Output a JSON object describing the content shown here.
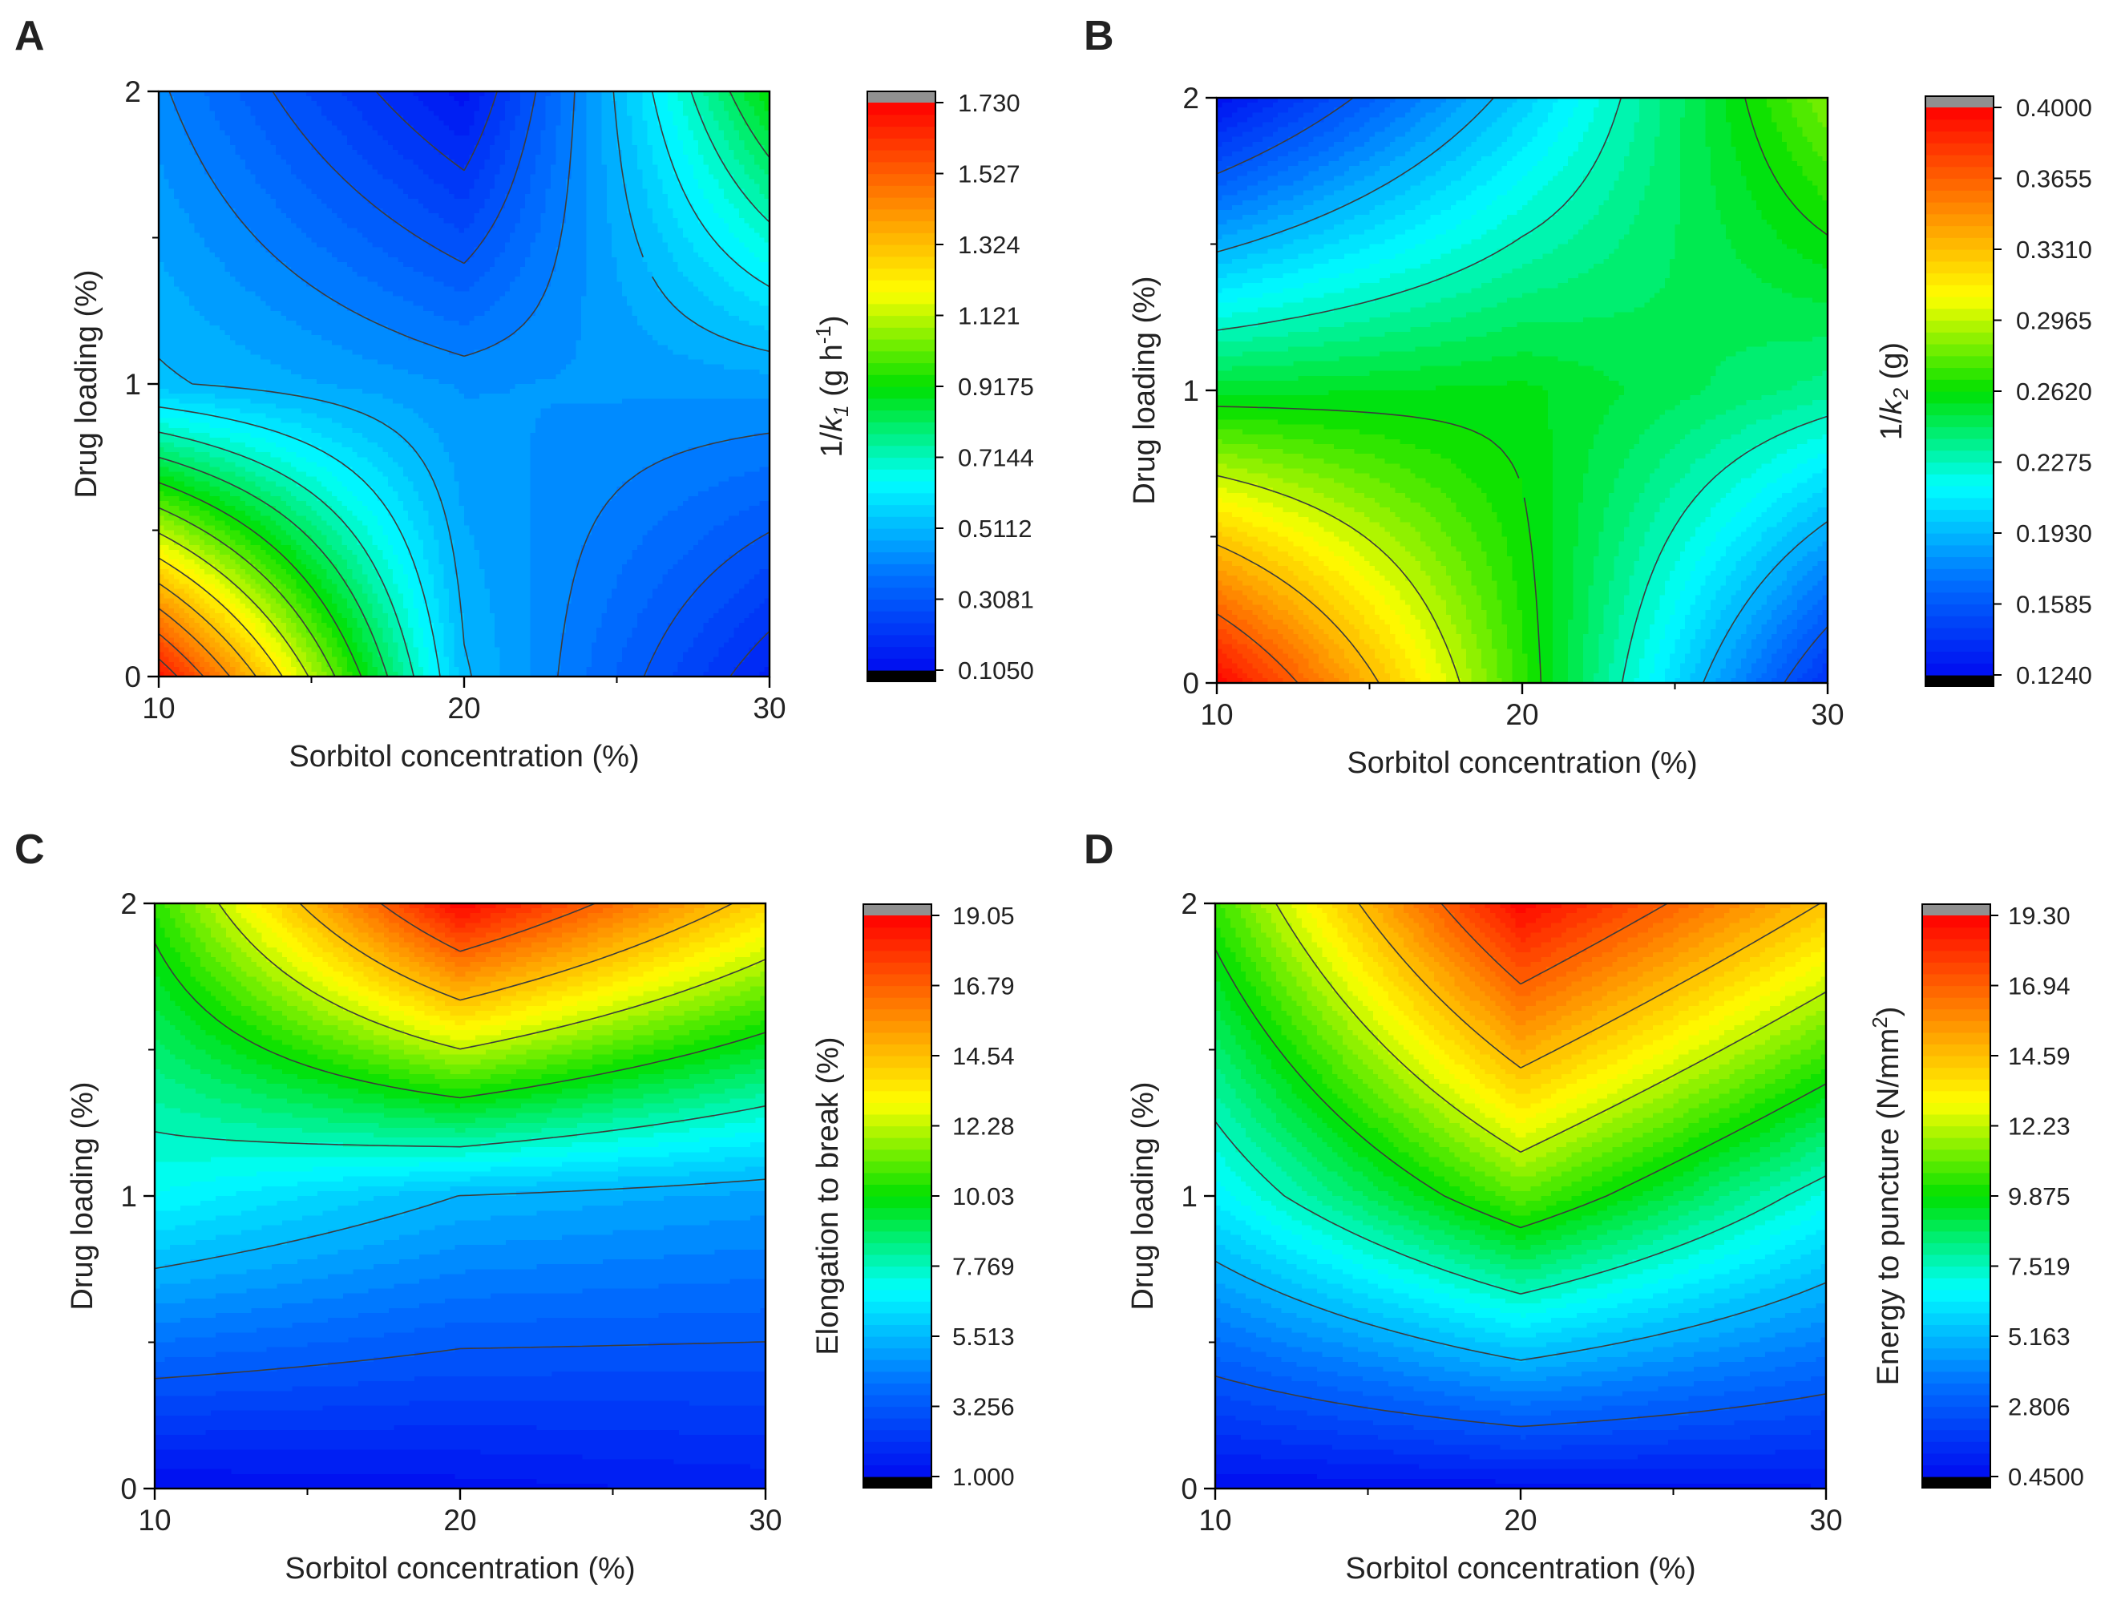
{
  "figure": {
    "panels": [
      "A",
      "B",
      "C",
      "D"
    ]
  },
  "colors": {
    "gradient": [
      "#000cf0",
      "#0070ff",
      "#00ffff",
      "#00e000",
      "#ffff00",
      "#ff8000",
      "#ff0000"
    ],
    "overflow_top": "#909090",
    "underflow_bottom": "#000000",
    "contour_line": "#3c3c3c"
  },
  "chart_data": [
    {
      "type": "heatmap",
      "panel": "A",
      "xlabel": "Sorbitol concentration (%)",
      "ylabel": "Drug loading (%)",
      "x": [
        10,
        20,
        30
      ],
      "y": [
        0,
        1,
        2
      ],
      "x_ticks": [
        "10",
        "20",
        "30"
      ],
      "y_ticks": [
        "0",
        "1",
        "2"
      ],
      "xlim": [
        10,
        30
      ],
      "ylim": [
        0,
        2
      ],
      "z": [
        [
          1.7,
          0.52,
          0.42
        ],
        [
          0.52,
          0.44,
          0.12
        ],
        [
          0.16,
          0.46,
          0.92
        ]
      ],
      "colorbar": {
        "title_prefix": "1/",
        "title_var": "k",
        "title_sub": "1",
        "title_suffix": " (g h",
        "title_sup": "-1",
        "title_end": ")",
        "min": 0.105,
        "max": 1.73,
        "ticks": [
          "1.730",
          "1.527",
          "1.324",
          "1.121",
          "0.9175",
          "0.7144",
          "0.5112",
          "0.3081",
          "0.1050"
        ]
      },
      "contour_levels": [
        0.2065,
        0.3081,
        0.4096,
        0.5112,
        0.6128,
        0.7144,
        0.8159,
        0.9175,
        1.019,
        1.121,
        1.222,
        1.324,
        1.425,
        1.527,
        1.628
      ]
    },
    {
      "type": "heatmap",
      "panel": "B",
      "xlabel": "Sorbitol concentration (%)",
      "ylabel": "Drug loading (%)",
      "x": [
        10,
        20,
        30
      ],
      "y": [
        0,
        1,
        2
      ],
      "x_ticks": [
        "10",
        "20",
        "30"
      ],
      "y_ticks": [
        "0",
        "1",
        "2"
      ],
      "xlim": [
        10,
        30
      ],
      "ylim": [
        0,
        2
      ],
      "z": [
        [
          0.4,
          0.254,
          0.125
        ],
        [
          0.27,
          0.258,
          0.2
        ],
        [
          0.14,
          0.236,
          0.285
        ]
      ],
      "colorbar": {
        "title_prefix": "1/",
        "title_var": "k",
        "title_sub": "2",
        "title_suffix": " (g)",
        "title_sup": "",
        "title_end": "",
        "min": 0.124,
        "max": 0.4,
        "ticks": [
          "0.4000",
          "0.3655",
          "0.3310",
          "0.2965",
          "0.2620",
          "0.2275",
          "0.1930",
          "0.1585",
          "0.1240"
        ]
      },
      "contour_levels": [
        0.1585,
        0.193,
        0.2275,
        0.262,
        0.2965,
        0.331,
        0.3655
      ]
    },
    {
      "type": "heatmap",
      "panel": "C",
      "xlabel": "Sorbitol concentration (%)",
      "ylabel": "Drug loading (%)",
      "x": [
        10,
        20,
        30
      ],
      "y": [
        0,
        1,
        2
      ],
      "x_ticks": [
        "10",
        "20",
        "30"
      ],
      "y_ticks": [
        "0",
        "1",
        "2"
      ],
      "xlim": [
        10,
        30
      ],
      "ylim": [
        0,
        2
      ],
      "z": [
        [
          1.0,
          7.0,
          10.5
        ],
        [
          1.2,
          5.5,
          19.0
        ],
        [
          1.5,
          5.0,
          14.0
        ]
      ],
      "colorbar": {
        "title_prefix": "",
        "title_var": "",
        "title_sub": "",
        "title_suffix": "Elongation to break (%)",
        "title_sup": "",
        "title_end": "",
        "min": 1.0,
        "max": 19.05,
        "ticks": [
          "19.05",
          "16.79",
          "14.54",
          "12.28",
          "10.03",
          "7.769",
          "5.513",
          "3.256",
          "1.000"
        ]
      },
      "contour_levels": [
        3.256,
        5.513,
        7.769,
        10.03,
        12.28,
        14.54,
        16.79
      ]
    },
    {
      "type": "heatmap",
      "panel": "D",
      "xlabel": "Sorbitol concentration (%)",
      "ylabel": "Drug loading (%)",
      "x": [
        10,
        20,
        30
      ],
      "y": [
        0,
        1,
        2
      ],
      "x_ticks": [
        "10",
        "20",
        "30"
      ],
      "y_ticks": [
        "0",
        "1",
        "2"
      ],
      "xlim": [
        10,
        30
      ],
      "ylim": [
        0,
        2
      ],
      "z": [
        [
          0.5,
          6.5,
          10.5
        ],
        [
          0.6,
          11.0,
          19.2
        ],
        [
          0.8,
          7.0,
          14.5
        ]
      ],
      "colorbar": {
        "title_prefix": "",
        "title_var": "",
        "title_sub": "",
        "title_suffix": "Energy to puncture (N/mm",
        "title_sup": "2",
        "title_end": ")",
        "min": 0.45,
        "max": 19.3,
        "ticks": [
          "19.30",
          "16.94",
          "14.59",
          "12.23",
          "9.875",
          "7.519",
          "5.163",
          "2.806",
          "0.4500"
        ]
      },
      "contour_levels": [
        2.806,
        5.163,
        7.519,
        9.875,
        12.23,
        14.59,
        16.94
      ]
    }
  ]
}
